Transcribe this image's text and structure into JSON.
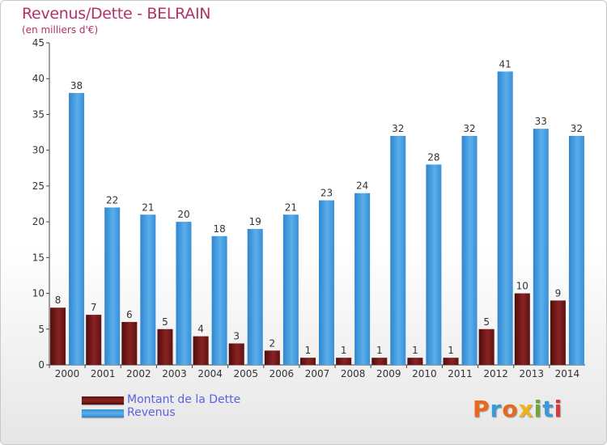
{
  "title": "Revenus/Dette - BELRAIN",
  "subtitle": "(en milliers d'€)",
  "logo": {
    "text": "Proxiti",
    "colors": [
      "#e8681e",
      "#3a9ad9",
      "#e8681e",
      "#f2b21c",
      "#6aa83a",
      "#3a9ad9",
      "#d9363e"
    ]
  },
  "colors": {
    "dette": "#7a1b1b",
    "revenus": "#3d97dc",
    "title": "#b4306a",
    "legend_text": "#5b62e0"
  },
  "chart_data": {
    "type": "bar",
    "title": "Revenus/Dette - BELRAIN",
    "subtitle": "(en milliers d'€)",
    "categories": [
      "2000",
      "2001",
      "2002",
      "2003",
      "2004",
      "2005",
      "2006",
      "2007",
      "2008",
      "2009",
      "2010",
      "2011",
      "2012",
      "2013",
      "2014"
    ],
    "series": [
      {
        "name": "Montant de la Dette",
        "values": [
          8,
          7,
          6,
          5,
          4,
          3,
          2,
          1,
          1,
          1,
          1,
          1,
          5,
          10,
          9
        ]
      },
      {
        "name": "Revenus",
        "values": [
          38,
          22,
          21,
          20,
          18,
          19,
          21,
          23,
          24,
          32,
          28,
          32,
          41,
          33,
          32
        ]
      }
    ],
    "ylim": [
      0,
      45
    ],
    "yticks": [
      0,
      5,
      10,
      15,
      20,
      25,
      30,
      35,
      40,
      45
    ],
    "grid": false,
    "legend": "bottom-left"
  }
}
